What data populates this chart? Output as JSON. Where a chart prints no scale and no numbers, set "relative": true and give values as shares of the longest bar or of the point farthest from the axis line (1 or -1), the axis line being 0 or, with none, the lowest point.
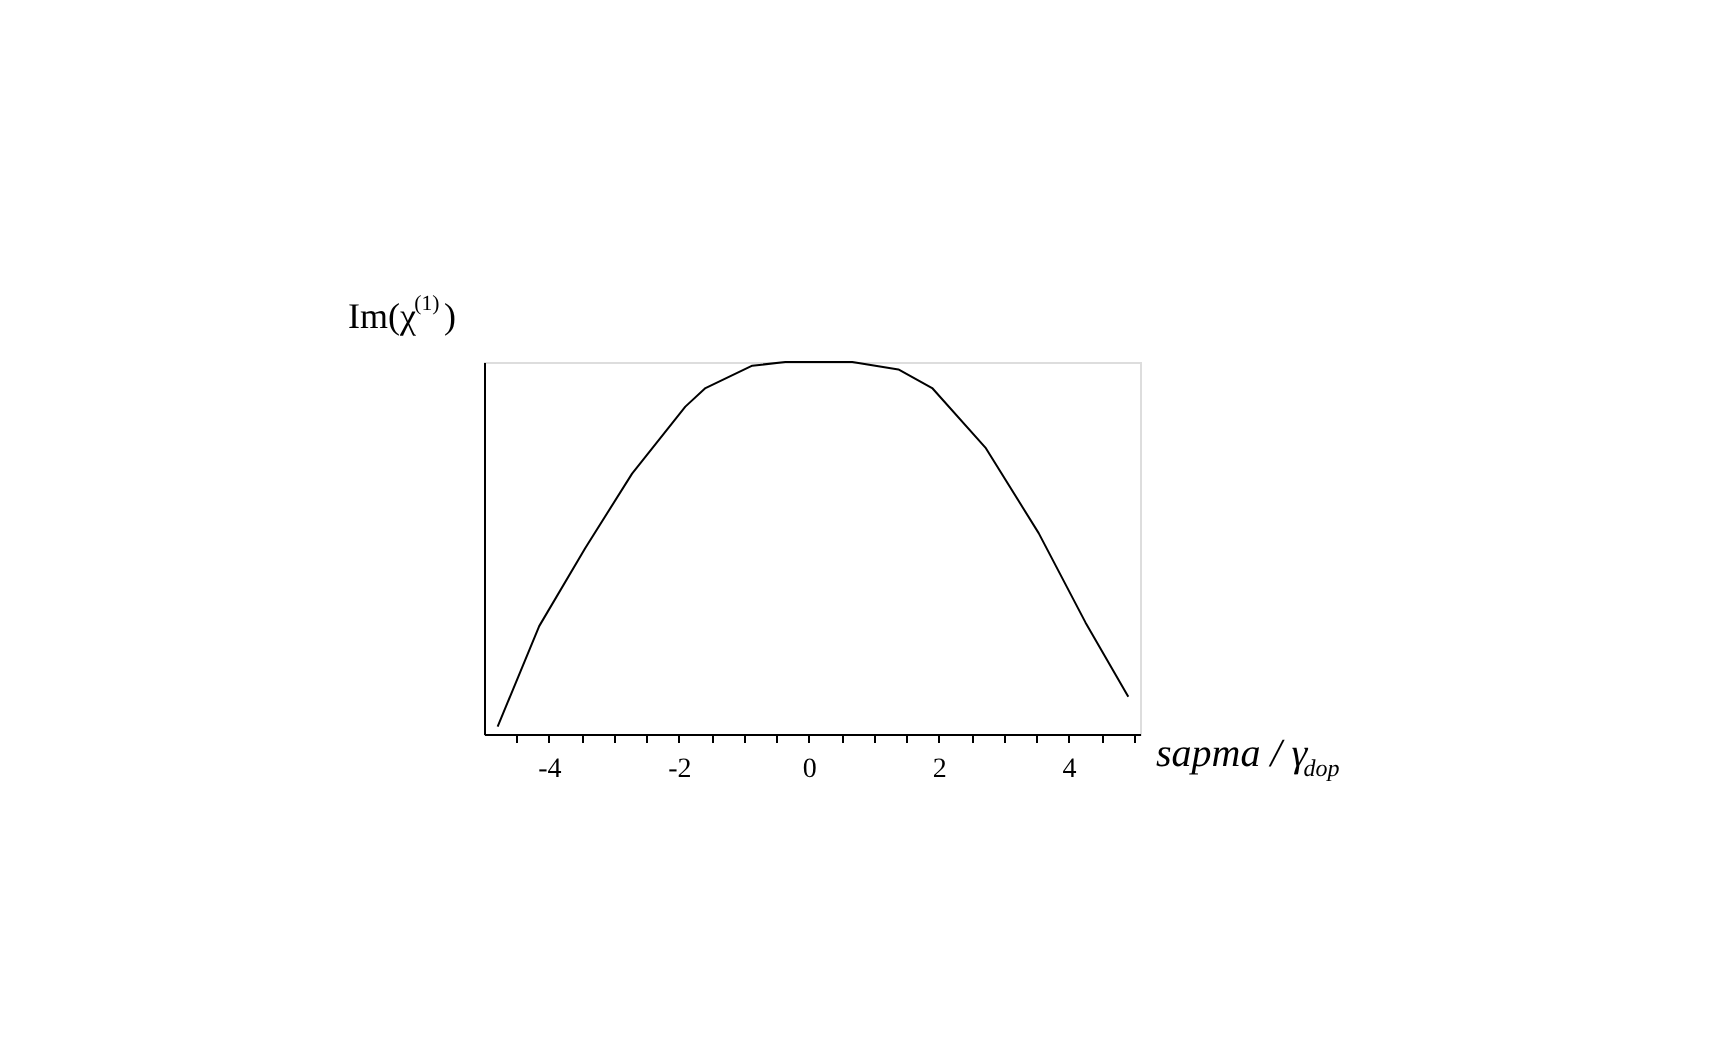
{
  "chart_data": {
    "type": "line",
    "relative": true,
    "xlabel": "sapma / γ$_{dop}$",
    "ylabel": "Im(χ$^{(1)}$)",
    "xlim": [
      -5,
      5.1
    ],
    "xticks": [
      {
        "value": -4.5,
        "label": null
      },
      -4,
      {
        "value": -3.5,
        "label": null
      },
      {
        "value": -3,
        "label": null
      },
      {
        "value": -2.5,
        "label": null
      },
      -2,
      {
        "value": -1.5,
        "label": null
      },
      {
        "value": -1,
        "label": null
      },
      {
        "value": -0.5,
        "label": null
      },
      0,
      {
        "value": 0.5,
        "label": null
      },
      {
        "value": 1,
        "label": null
      },
      {
        "value": 1.5,
        "label": null
      },
      2,
      {
        "value": 2.5,
        "label": null
      },
      {
        "value": 3,
        "label": null
      },
      {
        "value": 3.5,
        "label": null
      },
      4,
      {
        "value": 4.5,
        "label": null
      },
      {
        "value": 5,
        "label": null
      }
    ],
    "marker": "none",
    "line_style": "solid",
    "grid": false,
    "series": [
      {
        "color": "#000000",
        "x": [
          -4.79,
          -4.15,
          -3.44,
          -2.72,
          -1.9,
          -1.59,
          -0.87,
          -0.36,
          0.67,
          1.38,
          1.9,
          2.72,
          3.54,
          4.26,
          4.92
        ],
        "values": [
          0.02,
          0.29,
          0.5,
          0.7,
          0.88,
          0.93,
          0.99,
          1.0,
          1.0,
          0.98,
          0.93,
          0.77,
          0.54,
          0.3,
          0.1
        ]
      }
    ]
  }
}
